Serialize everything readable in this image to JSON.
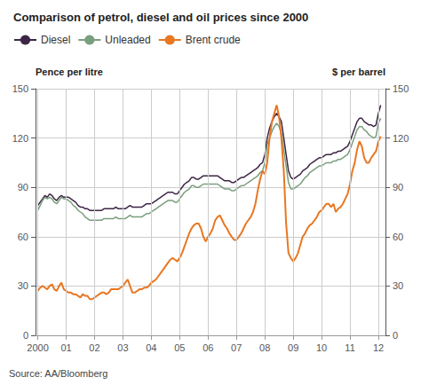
{
  "chart_data": {
    "type": "line",
    "title": "Comparison of petrol, diesel and oil prices since 2000",
    "ylabel": "Pence per litre",
    "y2label": "$ per barrel",
    "annotations": [
      "Source: AA/Bloomberg"
    ],
    "grid": true,
    "legend": "top",
    "xlim": [
      1999.92,
      2012.25
    ],
    "xticks": [
      2000,
      {
        "value": 2001,
        "label": "01"
      },
      {
        "value": 2002,
        "label": "02"
      },
      {
        "value": 2003,
        "label": "03"
      },
      {
        "value": 2004,
        "label": "04"
      },
      {
        "value": 2005,
        "label": "05"
      },
      {
        "value": 2006,
        "label": "06"
      },
      {
        "value": 2007,
        "label": "07"
      },
      {
        "value": 2008,
        "label": "08"
      },
      {
        "value": 2009,
        "label": "09"
      },
      {
        "value": 2010,
        "label": "10"
      },
      {
        "value": 2011,
        "label": "11"
      },
      {
        "value": 2012,
        "label": "12"
      }
    ],
    "ylim": [
      0,
      150
    ],
    "yticks": [
      0,
      30,
      60,
      90,
      120,
      150
    ],
    "y2lim": [
      0,
      150
    ],
    "y2ticks": [
      0,
      30,
      60,
      90,
      120,
      150
    ],
    "x": [
      2000.0,
      2000.083,
      2000.167,
      2000.25,
      2000.333,
      2000.417,
      2000.5,
      2000.583,
      2000.667,
      2000.75,
      2000.833,
      2000.917,
      2001.0,
      2001.083,
      2001.167,
      2001.25,
      2001.333,
      2001.417,
      2001.5,
      2001.583,
      2001.667,
      2001.75,
      2001.833,
      2001.917,
      2002.0,
      2002.083,
      2002.167,
      2002.25,
      2002.333,
      2002.417,
      2002.5,
      2002.583,
      2002.667,
      2002.75,
      2002.833,
      2002.917,
      2003.0,
      2003.083,
      2003.167,
      2003.25,
      2003.333,
      2003.417,
      2003.5,
      2003.583,
      2003.667,
      2003.75,
      2003.833,
      2003.917,
      2004.0,
      2004.083,
      2004.167,
      2004.25,
      2004.333,
      2004.417,
      2004.5,
      2004.583,
      2004.667,
      2004.75,
      2004.833,
      2004.917,
      2005.0,
      2005.083,
      2005.167,
      2005.25,
      2005.333,
      2005.417,
      2005.5,
      2005.583,
      2005.667,
      2005.75,
      2005.833,
      2005.917,
      2006.0,
      2006.083,
      2006.167,
      2006.25,
      2006.333,
      2006.417,
      2006.5,
      2006.583,
      2006.667,
      2006.75,
      2006.833,
      2006.917,
      2007.0,
      2007.083,
      2007.167,
      2007.25,
      2007.333,
      2007.417,
      2007.5,
      2007.583,
      2007.667,
      2007.75,
      2007.833,
      2007.917,
      2008.0,
      2008.083,
      2008.167,
      2008.25,
      2008.333,
      2008.417,
      2008.5,
      2008.583,
      2008.667,
      2008.75,
      2008.833,
      2008.917,
      2009.0,
      2009.083,
      2009.167,
      2009.25,
      2009.333,
      2009.417,
      2009.5,
      2009.583,
      2009.667,
      2009.75,
      2009.833,
      2009.917,
      2010.0,
      2010.083,
      2010.167,
      2010.25,
      2010.333,
      2010.417,
      2010.5,
      2010.583,
      2010.667,
      2010.75,
      2010.833,
      2010.917,
      2011.0,
      2011.083,
      2011.167,
      2011.25,
      2011.333,
      2011.417,
      2011.5,
      2011.583,
      2011.667,
      2011.75,
      2011.833,
      2011.917,
      2012.0,
      2012.083
    ],
    "series": [
      {
        "name": "Diesel",
        "color": "#3D2645",
        "values": [
          79,
          81,
          83,
          85,
          84,
          86,
          85,
          83,
          82,
          84,
          85,
          84,
          84,
          84,
          83,
          82,
          81,
          79,
          78,
          78,
          77,
          77,
          76,
          76,
          76,
          76,
          76,
          76,
          77,
          77,
          77,
          77,
          77,
          78,
          77,
          77,
          77,
          77,
          78,
          79,
          78,
          78,
          78,
          78,
          78,
          79,
          80,
          80,
          80,
          81,
          82,
          83,
          84,
          85,
          86,
          87,
          87,
          87,
          86,
          86,
          88,
          90,
          92,
          93,
          94,
          96,
          96,
          95,
          95,
          96,
          97,
          97,
          97,
          97,
          97,
          97,
          97,
          96,
          95,
          94,
          94,
          94,
          93,
          93,
          94,
          95,
          96,
          96,
          97,
          98,
          99,
          100,
          101,
          102,
          104,
          105,
          110,
          120,
          126,
          130,
          133,
          135,
          133,
          130,
          120,
          110,
          100,
          96,
          95,
          96,
          97,
          98,
          100,
          101,
          102,
          104,
          105,
          106,
          107,
          108,
          108,
          109,
          110,
          110,
          110,
          111,
          111,
          112,
          112,
          113,
          114,
          115,
          118,
          122,
          126,
          130,
          132,
          132,
          130,
          129,
          128,
          128,
          127,
          128,
          135,
          140
        ]
      },
      {
        "name": "Unleaded",
        "color": "#7A9E7E",
        "values": [
          76,
          79,
          82,
          84,
          83,
          84,
          83,
          81,
          80,
          82,
          84,
          83,
          83,
          82,
          81,
          79,
          78,
          76,
          75,
          74,
          72,
          71,
          70,
          70,
          70,
          70,
          70,
          70,
          71,
          71,
          71,
          71,
          71,
          72,
          71,
          71,
          71,
          71,
          72,
          73,
          72,
          72,
          72,
          72,
          72,
          73,
          74,
          74,
          75,
          76,
          77,
          78,
          79,
          80,
          81,
          82,
          82,
          82,
          81,
          81,
          83,
          85,
          87,
          88,
          89,
          91,
          91,
          90,
          90,
          91,
          92,
          92,
          92,
          92,
          92,
          92,
          92,
          91,
          90,
          89,
          89,
          89,
          88,
          88,
          89,
          90,
          91,
          91,
          92,
          93,
          94,
          95,
          96,
          97,
          99,
          100,
          105,
          116,
          120,
          124,
          127,
          129,
          127,
          123,
          113,
          103,
          93,
          89,
          89,
          90,
          91,
          92,
          94,
          96,
          97,
          99,
          100,
          101,
          102,
          103,
          103,
          104,
          105,
          105,
          105,
          106,
          106,
          107,
          107,
          108,
          109,
          110,
          113,
          117,
          121,
          125,
          127,
          127,
          125,
          124,
          122,
          121,
          120,
          121,
          129,
          132
        ]
      },
      {
        "name": "Brent crude",
        "color": "#E87722",
        "axis": "y2",
        "values": [
          27,
          29,
          30,
          29,
          28,
          30,
          31,
          28,
          27,
          30,
          32,
          28,
          27,
          26,
          26,
          25,
          25,
          24,
          23,
          25,
          24,
          24,
          22,
          22,
          23,
          24,
          25,
          26,
          26,
          25,
          26,
          28,
          28,
          28,
          28,
          29,
          30,
          32,
          34,
          30,
          26,
          26,
          27,
          28,
          28,
          29,
          29,
          30,
          32,
          33,
          34,
          36,
          38,
          40,
          42,
          44,
          46,
          47,
          46,
          45,
          47,
          50,
          54,
          58,
          62,
          65,
          67,
          68,
          68,
          65,
          60,
          57,
          60,
          62,
          65,
          70,
          72,
          73,
          70,
          67,
          65,
          62,
          60,
          58,
          58,
          60,
          62,
          65,
          68,
          70,
          72,
          75,
          80,
          88,
          95,
          100,
          98,
          105,
          120,
          130,
          135,
          140,
          133,
          120,
          100,
          68,
          50,
          47,
          45,
          47,
          50,
          55,
          60,
          62,
          65,
          67,
          68,
          70,
          72,
          75,
          76,
          78,
          80,
          80,
          78,
          80,
          75,
          77,
          78,
          80,
          83,
          86,
          92,
          100,
          105,
          113,
          118,
          115,
          108,
          105,
          105,
          108,
          110,
          112,
          118,
          121
        ]
      }
    ]
  }
}
